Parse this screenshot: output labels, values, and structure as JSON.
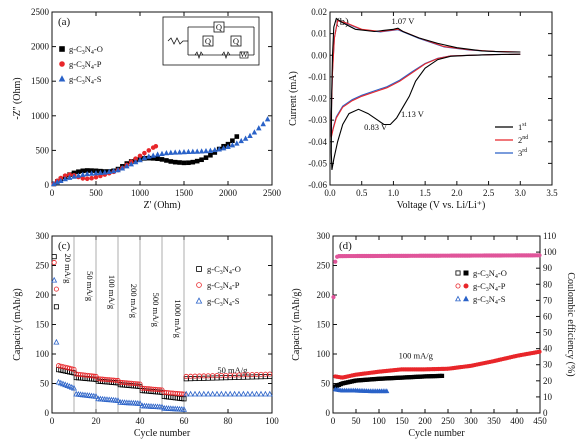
{
  "chart_data": [
    {
      "panel": "(a)",
      "type": "scatter",
      "xlabel": "Z' (Ohm)",
      "ylabel": "-Z'' (Ohm)",
      "xlim": [
        0,
        2500
      ],
      "ylim": [
        0,
        2500
      ],
      "xticks": [
        0,
        500,
        1000,
        1500,
        2000,
        2500
      ],
      "yticks": [
        0,
        500,
        1000,
        1500,
        2000,
        2500
      ],
      "legend_position": "left",
      "inset": "equivalent circuit with elements Q, Q, Q, W",
      "series": [
        {
          "name": "g-C3N4-O",
          "legend_html": "g-C<tspan font-size='6' dy='2'>3</tspan><tspan dy='-2'>N</tspan><tspan font-size='6' dy='2'>4</tspan><tspan dy='-2'>-O</tspan>",
          "marker": "square",
          "color": "#000000",
          "x": [
            20,
            60,
            100,
            150,
            200,
            250,
            300,
            350,
            400,
            450,
            500,
            550,
            600,
            650,
            700,
            750,
            800,
            850,
            900,
            950,
            1000,
            1050,
            1100,
            1150,
            1200,
            1250,
            1300,
            1350,
            1400,
            1450,
            1500,
            1550,
            1600,
            1650,
            1700,
            1750,
            1800,
            1850,
            1900,
            1950,
            2000,
            2050,
            2100
          ],
          "y": [
            15,
            50,
            85,
            120,
            150,
            175,
            192,
            205,
            210,
            208,
            205,
            200,
            195,
            195,
            205,
            230,
            270,
            310,
            340,
            360,
            375,
            385,
            388,
            385,
            380,
            370,
            355,
            340,
            330,
            325,
            320,
            322,
            330,
            345,
            365,
            395,
            430,
            470,
            520,
            560,
            590,
            640,
            700
          ]
        },
        {
          "name": "g-C3N4-P",
          "legend_html": "g-C<tspan font-size='6' dy='2'>3</tspan><tspan dy='-2'>N</tspan><tspan font-size='6' dy='2'>4</tspan><tspan dy='-2'>-P</tspan>",
          "marker": "circle",
          "color": "#e8262a",
          "x": [
            20,
            60,
            100,
            150,
            200,
            250,
            300,
            350,
            400,
            450,
            500,
            550,
            600,
            650,
            700,
            750,
            800,
            850,
            900,
            950,
            1000,
            1050,
            1100,
            1150,
            1180
          ],
          "y": [
            15,
            60,
            100,
            135,
            150,
            140,
            115,
            95,
            90,
            98,
            112,
            130,
            150,
            170,
            190,
            215,
            245,
            290,
            335,
            380,
            420,
            460,
            500,
            540,
            560
          ]
        },
        {
          "name": "g-C3N4-S",
          "legend_html": "g-C<tspan font-size='6' dy='2'>3</tspan><tspan dy='-2'>N</tspan><tspan font-size='6' dy='2'>4</tspan><tspan dy='-2'>-S</tspan>",
          "marker": "triangle",
          "color": "#2a62c8",
          "x": [
            20,
            60,
            100,
            150,
            200,
            250,
            300,
            350,
            400,
            450,
            500,
            550,
            600,
            650,
            700,
            750,
            800,
            850,
            900,
            950,
            1000,
            1050,
            1100,
            1150,
            1200,
            1250,
            1300,
            1350,
            1400,
            1450,
            1500,
            1550,
            1600,
            1650,
            1700,
            1750,
            1800,
            1850,
            1900,
            1950,
            2000,
            2050,
            2100,
            2150,
            2200,
            2250,
            2300,
            2350,
            2400,
            2450
          ],
          "y": [
            15,
            40,
            60,
            85,
            105,
            120,
            135,
            148,
            158,
            165,
            170,
            175,
            180,
            190,
            200,
            215,
            240,
            270,
            300,
            330,
            360,
            390,
            410,
            425,
            440,
            450,
            460,
            465,
            470,
            472,
            475,
            478,
            480,
            482,
            485,
            490,
            495,
            505,
            515,
            530,
            550,
            575,
            600,
            635,
            670,
            710,
            760,
            820,
            880,
            950
          ]
        }
      ]
    },
    {
      "panel": "(b)",
      "type": "line",
      "xlabel": "Voltage (V vs. Li/Li⁺)",
      "ylabel": "Current (mA)",
      "xlim": [
        0,
        3.5
      ],
      "ylim": [
        -0.06,
        0.02
      ],
      "xticks": [
        0.0,
        0.5,
        1.0,
        1.5,
        2.0,
        2.5,
        3.0,
        3.5
      ],
      "yticks": [
        0.02,
        0.01,
        0.0,
        -0.01,
        -0.02,
        -0.03,
        -0.04,
        -0.05,
        -0.06
      ],
      "legend_position": "bottom-right",
      "annotations": [
        "1.07 V",
        "1.13 V",
        "0.83 V"
      ],
      "series": [
        {
          "name": "1st",
          "legend_html": "1<tspan font-size='6' dy='-4'>st</tspan>",
          "color": "#000000",
          "x": [
            3.0,
            2.6,
            2.2,
            1.9,
            1.7,
            1.5,
            1.35,
            1.25,
            1.15,
            1.05,
            0.95,
            0.85,
            0.75,
            0.6,
            0.45,
            0.3,
            0.2,
            0.12,
            0.06,
            0.03,
            0.02,
            0.025,
            0.04,
            0.06,
            0.1,
            0.2,
            0.4,
            0.7,
            1.0,
            1.07,
            1.15,
            1.4,
            1.7,
            2.0,
            2.4,
            2.8,
            3.0
          ],
          "y": [
            0.0005,
            0.0003,
            0.0,
            -0.0005,
            -0.002,
            -0.006,
            -0.012,
            -0.019,
            -0.024,
            -0.029,
            -0.032,
            -0.032,
            -0.03,
            -0.027,
            -0.025,
            -0.027,
            -0.032,
            -0.04,
            -0.048,
            -0.053,
            -0.045,
            -0.02,
            0.0,
            0.013,
            0.017,
            0.015,
            0.012,
            0.011,
            0.012,
            0.0125,
            0.011,
            0.008,
            0.0055,
            0.0035,
            0.002,
            0.0015,
            0.0015
          ]
        },
        {
          "name": "2nd",
          "legend_html": "2<tspan font-size='6' dy='-4'>nd</tspan>",
          "color": "#e8262a",
          "x": [
            3.0,
            2.6,
            2.2,
            1.9,
            1.7,
            1.5,
            1.3,
            1.1,
            0.9,
            0.7,
            0.5,
            0.35,
            0.2,
            0.1,
            0.05,
            0.02,
            0.02,
            0.04,
            0.07,
            0.12,
            0.25,
            0.5,
            0.8,
            1.07,
            1.4,
            1.8,
            2.2,
            2.6,
            3.0
          ],
          "y": [
            0.0005,
            0.0003,
            0.0,
            -0.0003,
            -0.0015,
            -0.004,
            -0.008,
            -0.012,
            -0.015,
            -0.017,
            -0.019,
            -0.021,
            -0.024,
            -0.029,
            -0.034,
            -0.038,
            -0.028,
            -0.008,
            0.008,
            0.016,
            0.015,
            0.012,
            0.011,
            0.012,
            0.008,
            0.004,
            0.0025,
            0.0018,
            0.0015
          ]
        },
        {
          "name": "3rd",
          "legend_html": "3<tspan font-size='6' dy='-4'>rd</tspan>",
          "color": "#2a62c8",
          "x": [
            3.0,
            2.6,
            2.2,
            1.9,
            1.7,
            1.5,
            1.3,
            1.1,
            0.9,
            0.7,
            0.5,
            0.35,
            0.2,
            0.1,
            0.05,
            0.02,
            0.02,
            0.04,
            0.07,
            0.12,
            0.25,
            0.5,
            0.8,
            1.07,
            1.4,
            1.8,
            2.2,
            2.6,
            3.0
          ],
          "y": [
            0.0005,
            0.0003,
            0.0,
            -0.0003,
            -0.0014,
            -0.0038,
            -0.0075,
            -0.0115,
            -0.0145,
            -0.0165,
            -0.0185,
            -0.0205,
            -0.0235,
            -0.0285,
            -0.0335,
            -0.0375,
            -0.027,
            -0.007,
            0.008,
            0.016,
            0.0148,
            0.0118,
            0.0108,
            0.0118,
            0.0078,
            0.0038,
            0.0024,
            0.0017,
            0.0015
          ]
        }
      ]
    },
    {
      "panel": "(c)",
      "type": "scatter",
      "xlabel": "Cycle number",
      "ylabel": "Capacity (mAh/g)",
      "xlim": [
        0,
        100
      ],
      "ylim": [
        0,
        300
      ],
      "xticks": [
        0,
        20,
        40,
        60,
        80,
        100
      ],
      "yticks": [
        0,
        50,
        100,
        150,
        200,
        250,
        300
      ],
      "legend_position": "right",
      "dividers": [
        10,
        20,
        30,
        40,
        50,
        60
      ],
      "rate_labels": [
        "20 mA/g",
        "50 mA/g",
        "100 mA/g",
        "200 mA/g",
        "500 mA/g",
        "1000 mA/g",
        "50 mA/g"
      ],
      "series": [
        {
          "name": "g-C3N4-O",
          "legend_html": "g-C<tspan font-size='6' dy='2'>3</tspan><tspan dy='-2'>N</tspan><tspan font-size='6' dy='2'>4</tspan><tspan dy='-2'>-O</tspan>",
          "marker": "square",
          "color": "#000000",
          "segments": [
            [
              1,
              10,
              75,
              68
            ],
            [
              11,
              20,
              60,
              57
            ],
            [
              21,
              30,
              54,
              51
            ],
            [
              31,
              40,
              48,
              45
            ],
            [
              41,
              50,
              38,
              35
            ],
            [
              51,
              60,
              28,
              24
            ],
            [
              61,
              100,
              58,
              62
            ]
          ],
          "first": [
            [
              1,
              265
            ],
            [
              2,
              180
            ]
          ]
        },
        {
          "name": "g-C3N4-P",
          "legend_html": "g-C<tspan font-size='6' dy='2'>3</tspan><tspan dy='-2'>N</tspan><tspan font-size='6' dy='2'>4</tspan><tspan dy='-2'>-P</tspan>",
          "marker": "circle",
          "color": "#e8262a",
          "segments": [
            [
              1,
              10,
              82,
              74
            ],
            [
              11,
              20,
              66,
              62
            ],
            [
              21,
              30,
              58,
              55
            ],
            [
              31,
              40,
              52,
              49
            ],
            [
              41,
              50,
              42,
              39
            ],
            [
              51,
              60,
              35,
              32
            ],
            [
              61,
              100,
              62,
              66
            ]
          ],
          "first": [
            [
              1,
              255
            ],
            [
              2,
              210
            ]
          ]
        },
        {
          "name": "g-C3N4-S",
          "legend_html": "g-C<tspan font-size='6' dy='2'>3</tspan><tspan dy='-2'>N</tspan><tspan font-size='6' dy='2'>4</tspan><tspan dy='-2'>-S</tspan>",
          "marker": "triangle",
          "color": "#2a62c8",
          "segments": [
            [
              1,
              10,
              55,
              42
            ],
            [
              11,
              20,
              32,
              28
            ],
            [
              21,
              30,
              24,
              21
            ],
            [
              31,
              40,
              18,
              16
            ],
            [
              41,
              50,
              12,
              10
            ],
            [
              51,
              60,
              8,
              6
            ],
            [
              61,
              100,
              32,
              32
            ]
          ],
          "first": [
            [
              1,
              225
            ],
            [
              2,
              120
            ]
          ]
        }
      ]
    },
    {
      "panel": "(d)",
      "type": "scatter",
      "xlabel": "Cycle number",
      "ylabel": "Capacity (mAh/g)",
      "ylabel_right": "Coulombic efficiency (%)",
      "xlim": [
        0,
        450
      ],
      "ylim": [
        0,
        300
      ],
      "ylim_right": [
        0,
        110
      ],
      "xticks": [
        0,
        50,
        100,
        150,
        200,
        250,
        300,
        350,
        400,
        450
      ],
      "yticks": [
        0,
        50,
        100,
        150,
        200,
        250,
        300
      ],
      "yticks_right": [
        0,
        10,
        20,
        30,
        40,
        50,
        60,
        70,
        80,
        90,
        100,
        110
      ],
      "legend_position": "top-center",
      "annotation": "100 mA/g",
      "series": [
        {
          "name": "g-C3N4-O",
          "legend_html": "g-C<tspan font-size='6' dy='2'>3</tspan><tspan dy='-2'>N</tspan><tspan font-size='6' dy='2'>4</tspan><tspan dy='-2'>-O</tspan>",
          "marker": "square",
          "color": "#000000",
          "capacity": [
            [
              5,
              45
            ],
            [
              20,
              50
            ],
            [
              50,
              55
            ],
            [
              100,
              58
            ],
            [
              150,
              60
            ],
            [
              200,
              62
            ],
            [
              240,
              63
            ]
          ]
        },
        {
          "name": "g-C3N4-P",
          "legend_html": "g-C<tspan font-size='6' dy='2'>3</tspan><tspan dy='-2'>N</tspan><tspan font-size='6' dy='2'>4</tspan><tspan dy='-2'>-P</tspan>",
          "marker": "circle",
          "color": "#e8262a",
          "capacity": [
            [
              5,
              62
            ],
            [
              20,
              60
            ],
            [
              50,
              65
            ],
            [
              100,
              70
            ],
            [
              150,
              74
            ],
            [
              200,
              74
            ],
            [
              250,
              75
            ],
            [
              300,
              80
            ],
            [
              350,
              88
            ],
            [
              400,
              97
            ],
            [
              450,
              104
            ]
          ]
        },
        {
          "name": "g-C3N4-S",
          "legend_html": "g-C<tspan font-size='6' dy='2'>3</tspan><tspan dy='-2'>N</tspan><tspan font-size='6' dy='2'>4</tspan><tspan dy='-2'>-S</tspan>",
          "marker": "triangle",
          "color": "#2a62c8",
          "capacity": [
            [
              5,
              40
            ],
            [
              20,
              38
            ],
            [
              50,
              38
            ],
            [
              80,
              37
            ],
            [
              120,
              37
            ]
          ]
        },
        {
          "name": "Coulombic efficiency",
          "marker": "circle",
          "color": "#e0559a",
          "efficiency": [
            [
              1,
              72
            ],
            [
              3,
              90
            ],
            [
              6,
              96
            ],
            [
              10,
              97.5
            ],
            [
              450,
              98
            ]
          ]
        }
      ]
    }
  ]
}
